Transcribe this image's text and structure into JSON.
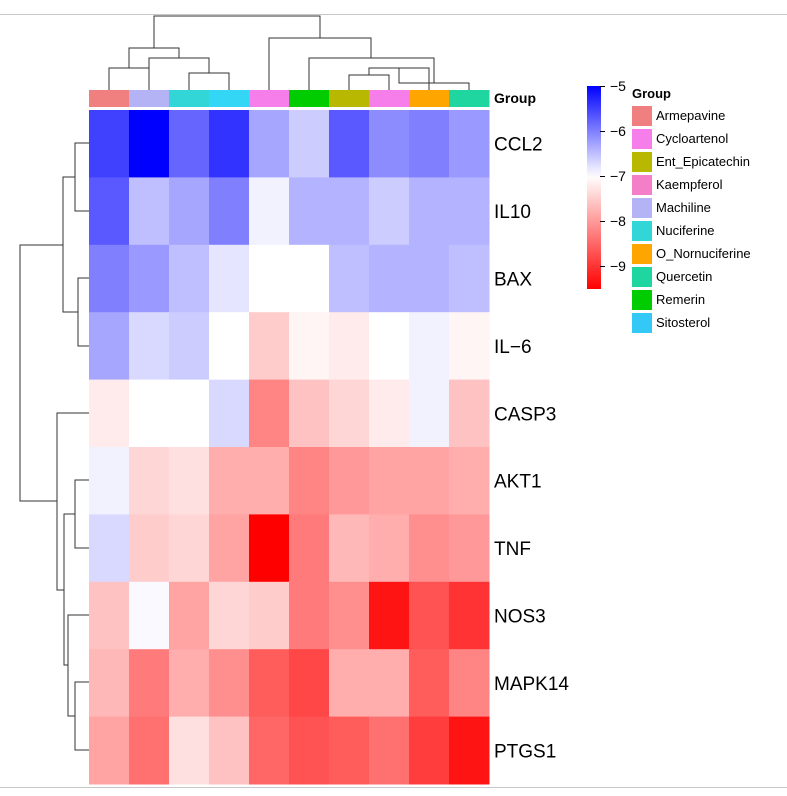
{
  "chart_data": {
    "type": "heatmap",
    "annotation_title": "Group",
    "columns": [
      "Armepavine",
      "Machiline",
      "Nuciferine",
      "Sitosterol",
      "Kaempferol",
      "Remerin",
      "Ent_Epicatechin",
      "Kaempferol",
      "O_Nornuciferine",
      "Quercetin"
    ],
    "column_colors": [
      "#F08080",
      "#B3B3F5",
      "#33D6D6",
      "#33D6F5",
      "#F57EEA",
      "#00CC00",
      "#B8B800",
      "#F57EEA",
      "#FFA500",
      "#1FD6A0"
    ],
    "rows": [
      "CCL2",
      "IL10",
      "BAX",
      "IL−6",
      "CASP3",
      "AKT1",
      "TNF",
      "NOS3",
      "MAPK14",
      "PTGS1"
    ],
    "values": [
      [
        -5.5,
        -5.0,
        -5.8,
        -5.4,
        -6.3,
        -6.6,
        -5.7,
        -6.1,
        -6.0,
        -6.2
      ],
      [
        -5.7,
        -6.5,
        -6.3,
        -6.0,
        -6.9,
        -6.4,
        -6.4,
        -6.6,
        -6.4,
        -6.4
      ],
      [
        -6.0,
        -6.2,
        -6.5,
        -6.8,
        -7.0,
        -7.0,
        -6.5,
        -6.4,
        -6.4,
        -6.5
      ],
      [
        -6.3,
        -6.7,
        -6.6,
        -7.0,
        -7.5,
        -7.1,
        -7.2,
        -7.0,
        -6.9,
        -7.1
      ],
      [
        -7.2,
        -7.0,
        -7.0,
        -6.7,
        -8.2,
        -7.6,
        -7.4,
        -7.2,
        -6.9,
        -7.6
      ],
      [
        -6.9,
        -7.4,
        -7.3,
        -7.8,
        -7.8,
        -8.2,
        -8.0,
        -7.9,
        -7.9,
        -7.8
      ],
      [
        -6.7,
        -7.5,
        -7.4,
        -7.9,
        -9.5,
        -8.3,
        -7.7,
        -7.8,
        -8.1,
        -8.0
      ],
      [
        -7.6,
        -6.95,
        -7.9,
        -7.4,
        -7.5,
        -8.3,
        -8.1,
        -9.3,
        -8.7,
        -9.0
      ],
      [
        -7.7,
        -8.3,
        -7.8,
        -8.1,
        -8.6,
        -8.8,
        -7.8,
        -7.8,
        -8.6,
        -8.2
      ],
      [
        -7.9,
        -8.4,
        -7.3,
        -7.6,
        -8.5,
        -8.7,
        -8.6,
        -8.4,
        -8.9,
        -9.3
      ]
    ],
    "color_scale": {
      "min": -9.5,
      "max": -5.0,
      "mid": -7.0,
      "low_color": "#FF0000",
      "mid_color": "#FFFFFF",
      "high_color": "#0000FF",
      "ticks": [
        "−5",
        "−6",
        "−7",
        "−8",
        "−9"
      ],
      "tick_values": [
        -5,
        -6,
        -7,
        -8,
        -9
      ]
    },
    "legend": {
      "title": "Group",
      "entries": [
        {
          "label": "Armepavine",
          "color": "#F08080"
        },
        {
          "label": "Cycloartenol",
          "color": "#F57EEA"
        },
        {
          "label": "Ent_Epicatechin",
          "color": "#B8B800"
        },
        {
          "label": "Kaempferol",
          "color": "#F57EC8"
        },
        {
          "label": "Machiline",
          "color": "#B3B3F5"
        },
        {
          "label": "Nuciferine",
          "color": "#33D6D6"
        },
        {
          "label": "O_Nornuciferine",
          "color": "#FFA500"
        },
        {
          "label": "Quercetin",
          "color": "#1FD6A0"
        },
        {
          "label": "Remerin",
          "color": "#00CC00"
        },
        {
          "label": "Sitosterol",
          "color": "#33C8F5"
        }
      ]
    }
  }
}
